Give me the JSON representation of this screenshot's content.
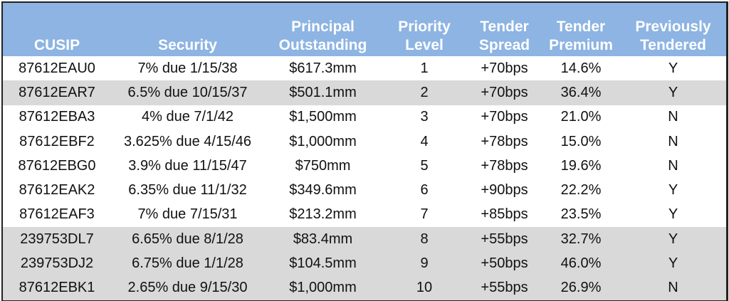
{
  "colors": {
    "header_bg": "#8DB4E2",
    "header_text": "#FFFFFF",
    "shaded_row": "#D9D9D9"
  },
  "columns": [
    {
      "line1": "",
      "line2": "CUSIP"
    },
    {
      "line1": "",
      "line2": "Security"
    },
    {
      "line1": "Principal",
      "line2": "Outstanding"
    },
    {
      "line1": "Priority",
      "line2": "Level"
    },
    {
      "line1": "Tender",
      "line2": "Spread"
    },
    {
      "line1": "Tender",
      "line2": "Premium"
    },
    {
      "line1": "Previously",
      "line2": "Tendered"
    }
  ],
  "rows": [
    {
      "shaded": false,
      "cells": [
        "87612EAU0",
        "7% due 1/15/38",
        "$617.3mm",
        "1",
        "+70bps",
        "14.6%",
        "Y"
      ]
    },
    {
      "shaded": true,
      "cells": [
        "87612EAR7",
        "6.5% due 10/15/37",
        "$501.1mm",
        "2",
        "+70bps",
        "36.4%",
        "Y"
      ]
    },
    {
      "shaded": false,
      "cells": [
        "87612EBA3",
        "4% due 7/1/42",
        "$1,500mm",
        "3",
        "+70bps",
        "21.0%",
        "N"
      ]
    },
    {
      "shaded": false,
      "cells": [
        "87612EBF2",
        "3.625% due 4/15/46",
        "$1,000mm",
        "4",
        "+78bps",
        "15.0%",
        "N"
      ]
    },
    {
      "shaded": false,
      "cells": [
        "87612EBG0",
        "3.9% due 11/15/47",
        "$750mm",
        "5",
        "+78bps",
        "19.6%",
        "N"
      ]
    },
    {
      "shaded": false,
      "cells": [
        "87612EAK2",
        "6.35% due 11/1/32",
        "$349.6mm",
        "6",
        "+90bps",
        "22.2%",
        "Y"
      ]
    },
    {
      "shaded": false,
      "cells": [
        "87612EAF3",
        "7% due 7/15/31",
        "$213.2mm",
        "7",
        "+85bps",
        "23.5%",
        "Y"
      ]
    },
    {
      "shaded": true,
      "cells": [
        "239753DL7",
        "6.65% due 8/1/28",
        "$83.4mm",
        "8",
        "+55bps",
        "32.7%",
        "Y"
      ]
    },
    {
      "shaded": true,
      "cells": [
        "239753DJ2",
        "6.75% due 1/1/28",
        "$104.5mm",
        "9",
        "+50bps",
        "46.0%",
        "Y"
      ]
    },
    {
      "shaded": true,
      "cells": [
        "87612EBK1",
        "2.65% due 9/15/30",
        "$1,000mm",
        "10",
        "+55bps",
        "26.9%",
        "N"
      ]
    }
  ]
}
